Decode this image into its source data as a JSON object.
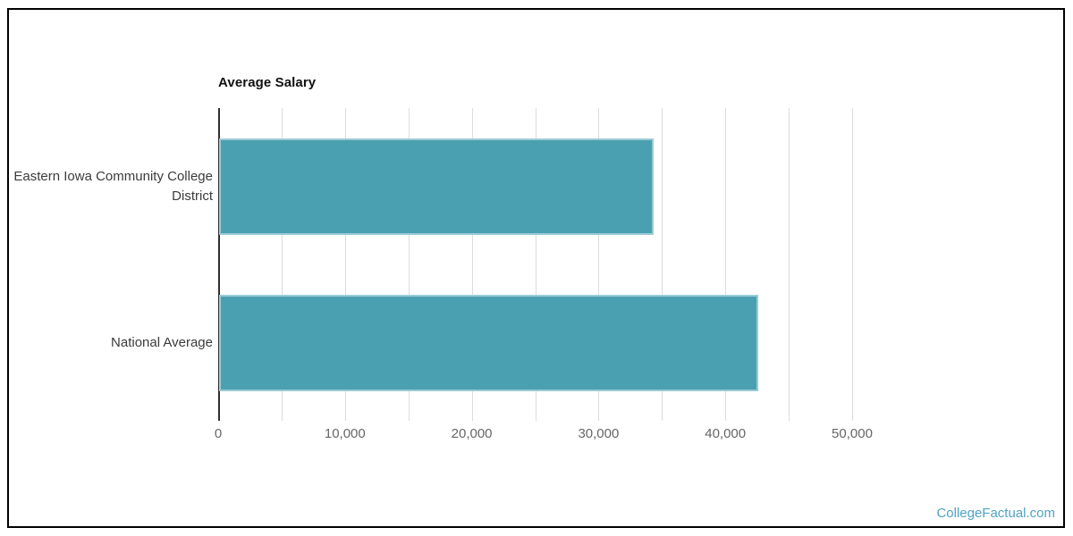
{
  "page": {
    "background": "#ffffff",
    "frame_border_color": "#000000"
  },
  "watermark": {
    "text": "CollegeFactual.com",
    "color": "#4fa3c2"
  },
  "chart_data": {
    "type": "bar",
    "orientation": "horizontal",
    "title": "Average Salary",
    "categories": [
      "Eastern Iowa Community College District",
      "National Average"
    ],
    "values": [
      34300,
      42500
    ],
    "xlabel": "",
    "ylabel": "",
    "xlim": [
      0,
      50000
    ],
    "x_ticks": [
      0,
      10000,
      20000,
      30000,
      40000,
      50000
    ],
    "x_tick_labels": [
      "0",
      "10,000",
      "20,000",
      "30,000",
      "40,000",
      "50,000"
    ],
    "gridline_interval": 5000,
    "grid": true,
    "legend": false,
    "bar_color": "#4aa0b1",
    "bar_edge_color": "#9bcbd4",
    "axis_line_color": "#2f2f2f",
    "gridline_color": "#dcdcdc",
    "tick_label_color": "#666666",
    "category_label_color": "#3b3b3b"
  }
}
